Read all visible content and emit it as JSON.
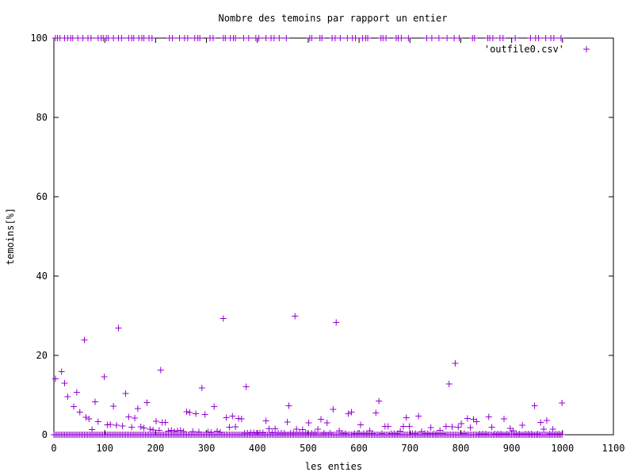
{
  "chart_data": {
    "type": "scatter",
    "title": "Nombre des temoins par rapport un entier",
    "xlabel": "les enties",
    "ylabel": "temoins[%]",
    "xlim": [
      0,
      1100
    ],
    "ylim": [
      0,
      100
    ],
    "xticks": [
      0,
      100,
      200,
      300,
      400,
      500,
      600,
      700,
      800,
      900,
      1000,
      1100
    ],
    "yticks": [
      0,
      20,
      40,
      60,
      80,
      100
    ],
    "grid": false,
    "legend": "top-right",
    "series": [
      {
        "name": "'outfile0.csv'",
        "color": "#9400d3",
        "marker": "plus",
        "points": [
          [
            3,
            100
          ],
          [
            7,
            100
          ],
          [
            12,
            100
          ],
          [
            21,
            100
          ],
          [
            27,
            100
          ],
          [
            33,
            100
          ],
          [
            37,
            100
          ],
          [
            47,
            100
          ],
          [
            57,
            100
          ],
          [
            67,
            100
          ],
          [
            73,
            100
          ],
          [
            87,
            100
          ],
          [
            93,
            100
          ],
          [
            97,
            100
          ],
          [
            103,
            100
          ],
          [
            107,
            100
          ],
          [
            117,
            100
          ],
          [
            127,
            100
          ],
          [
            133,
            100
          ],
          [
            147,
            100
          ],
          [
            153,
            100
          ],
          [
            157,
            100
          ],
          [
            167,
            100
          ],
          [
            173,
            100
          ],
          [
            177,
            100
          ],
          [
            187,
            100
          ],
          [
            193,
            100
          ],
          [
            227,
            100
          ],
          [
            233,
            100
          ],
          [
            247,
            100
          ],
          [
            257,
            100
          ],
          [
            263,
            100
          ],
          [
            277,
            100
          ],
          [
            283,
            100
          ],
          [
            287,
            100
          ],
          [
            307,
            100
          ],
          [
            313,
            100
          ],
          [
            333,
            100
          ],
          [
            337,
            100
          ],
          [
            347,
            100
          ],
          [
            353,
            100
          ],
          [
            357,
            100
          ],
          [
            373,
            100
          ],
          [
            383,
            100
          ],
          [
            397,
            100
          ],
          [
            403,
            100
          ],
          [
            417,
            100
          ],
          [
            427,
            100
          ],
          [
            433,
            100
          ],
          [
            443,
            100
          ],
          [
            457,
            100
          ],
          [
            503,
            100
          ],
          [
            507,
            100
          ],
          [
            523,
            100
          ],
          [
            527,
            100
          ],
          [
            547,
            100
          ],
          [
            553,
            100
          ],
          [
            563,
            100
          ],
          [
            577,
            100
          ],
          [
            587,
            100
          ],
          [
            593,
            100
          ],
          [
            607,
            100
          ],
          [
            613,
            100
          ],
          [
            617,
            100
          ],
          [
            643,
            100
          ],
          [
            647,
            100
          ],
          [
            653,
            100
          ],
          [
            673,
            100
          ],
          [
            677,
            100
          ],
          [
            683,
            100
          ],
          [
            697,
            100
          ],
          [
            733,
            100
          ],
          [
            743,
            100
          ],
          [
            757,
            100
          ],
          [
            773,
            100
          ],
          [
            787,
            100
          ],
          [
            797,
            100
          ],
          [
            823,
            100
          ],
          [
            827,
            100
          ],
          [
            853,
            100
          ],
          [
            857,
            100
          ],
          [
            863,
            100
          ],
          [
            877,
            100
          ],
          [
            883,
            100
          ],
          [
            907,
            100
          ],
          [
            937,
            100
          ],
          [
            947,
            100
          ],
          [
            953,
            100
          ],
          [
            967,
            100
          ],
          [
            977,
            100
          ],
          [
            983,
            100
          ],
          [
            997,
            100
          ],
          [
            3,
            14.1
          ],
          [
            15,
            15.9
          ],
          [
            21,
            13
          ],
          [
            27,
            9.6
          ],
          [
            39,
            7.1
          ],
          [
            45,
            10.7
          ],
          [
            51,
            5.7
          ],
          [
            60,
            23.9
          ],
          [
            63,
            4.4
          ],
          [
            69,
            4
          ],
          [
            75,
            1.3
          ],
          [
            81,
            8.3
          ],
          [
            87,
            3.3
          ],
          [
            99,
            14.6
          ],
          [
            105,
            2.5
          ],
          [
            111,
            2.6
          ],
          [
            117,
            7.2
          ],
          [
            123,
            2.4
          ],
          [
            127,
            26.9
          ],
          [
            135,
            2.2
          ],
          [
            141,
            10.4
          ],
          [
            147,
            4.5
          ],
          [
            153,
            1.9
          ],
          [
            159,
            4.2
          ],
          [
            165,
            6.6
          ],
          [
            171,
            2
          ],
          [
            177,
            1.7
          ],
          [
            183,
            8.1
          ],
          [
            189,
            1.4
          ],
          [
            195,
            1.2
          ],
          [
            201,
            3.4
          ],
          [
            207,
            1.1
          ],
          [
            210,
            16.3
          ],
          [
            213,
            3.1
          ],
          [
            219,
            3.1
          ],
          [
            225,
            0.9
          ],
          [
            231,
            1.1
          ],
          [
            237,
            0.8
          ],
          [
            243,
            1
          ],
          [
            249,
            1.1
          ],
          [
            255,
            0.8
          ],
          [
            261,
            5.8
          ],
          [
            267,
            5.6
          ],
          [
            273,
            0.8
          ],
          [
            279,
            5.3
          ],
          [
            285,
            0.7
          ],
          [
            291,
            11.8
          ],
          [
            297,
            5.1
          ],
          [
            303,
            0.7
          ],
          [
            309,
            0.6
          ],
          [
            315,
            7.1
          ],
          [
            321,
            0.9
          ],
          [
            327,
            0.6
          ],
          [
            333,
            29.3
          ],
          [
            339,
            4.3
          ],
          [
            345,
            1.9
          ],
          [
            351,
            4.7
          ],
          [
            357,
            2
          ],
          [
            363,
            4.1
          ],
          [
            369,
            4
          ],
          [
            375,
            0.4
          ],
          [
            378,
            12.1
          ],
          [
            381,
            0.4
          ],
          [
            387,
            0.5
          ],
          [
            393,
            0.5
          ],
          [
            399,
            0.4
          ],
          [
            405,
            0.5
          ],
          [
            411,
            0.5
          ],
          [
            417,
            3.5
          ],
          [
            423,
            1.5
          ],
          [
            429,
            0.5
          ],
          [
            435,
            1.5
          ],
          [
            441,
            0.4
          ],
          [
            447,
            0.4
          ],
          [
            453,
            0.4
          ],
          [
            459,
            3.2
          ],
          [
            462,
            7.3
          ],
          [
            465,
            0.4
          ],
          [
            471,
            0.4
          ],
          [
            474,
            29.9
          ],
          [
            477,
            1.4
          ],
          [
            483,
            0.4
          ],
          [
            489,
            1.3
          ],
          [
            495,
            0.4
          ],
          [
            501,
            3
          ],
          [
            507,
            0.4
          ],
          [
            513,
            0.4
          ],
          [
            519,
            1.4
          ],
          [
            525,
            3.9
          ],
          [
            531,
            0.4
          ],
          [
            537,
            3
          ],
          [
            543,
            0.4
          ],
          [
            549,
            6.4
          ],
          [
            555,
            28.3
          ],
          [
            561,
            1
          ],
          [
            567,
            0.4
          ],
          [
            573,
            0.3
          ],
          [
            579,
            5.3
          ],
          [
            585,
            5.7
          ],
          [
            591,
            0.3
          ],
          [
            597,
            0.3
          ],
          [
            603,
            2.5
          ],
          [
            609,
            0.3
          ],
          [
            615,
            0.3
          ],
          [
            621,
            1
          ],
          [
            627,
            0.3
          ],
          [
            633,
            5.5
          ],
          [
            639,
            8.5
          ],
          [
            645,
            0.3
          ],
          [
            651,
            2.1
          ],
          [
            657,
            2.1
          ],
          [
            663,
            0.3
          ],
          [
            669,
            0.3
          ],
          [
            675,
            0.3
          ],
          [
            681,
            0.9
          ],
          [
            687,
            2.1
          ],
          [
            693,
            4.3
          ],
          [
            699,
            2.1
          ],
          [
            705,
            0.3
          ],
          [
            711,
            0.3
          ],
          [
            717,
            4.7
          ],
          [
            723,
            0.8
          ],
          [
            729,
            0.3
          ],
          [
            735,
            0.3
          ],
          [
            741,
            1.8
          ],
          [
            747,
            0.3
          ],
          [
            753,
            0.3
          ],
          [
            759,
            1.1
          ],
          [
            765,
            0.3
          ],
          [
            771,
            2.1
          ],
          [
            777,
            12.8
          ],
          [
            783,
            2
          ],
          [
            789,
            18
          ],
          [
            795,
            1.9
          ],
          [
            801,
            2.8
          ],
          [
            807,
            0.3
          ],
          [
            813,
            4.1
          ],
          [
            819,
            1.8
          ],
          [
            825,
            3.9
          ],
          [
            831,
            3.3
          ],
          [
            837,
            0.2
          ],
          [
            843,
            0.2
          ],
          [
            849,
            0.2
          ],
          [
            855,
            4.5
          ],
          [
            861,
            1.9
          ],
          [
            867,
            0.2
          ],
          [
            873,
            0.2
          ],
          [
            879,
            0.2
          ],
          [
            885,
            4
          ],
          [
            891,
            0.2
          ],
          [
            897,
            1.6
          ],
          [
            903,
            1
          ],
          [
            909,
            0.2
          ],
          [
            915,
            0.2
          ],
          [
            921,
            2.4
          ],
          [
            927,
            0.2
          ],
          [
            933,
            0.2
          ],
          [
            939,
            0.2
          ],
          [
            945,
            7.3
          ],
          [
            951,
            0.2
          ],
          [
            957,
            3.1
          ],
          [
            963,
            1.4
          ],
          [
            969,
            3.6
          ],
          [
            975,
            0.2
          ],
          [
            981,
            1.4
          ],
          [
            987,
            0.2
          ],
          [
            993,
            0.2
          ],
          [
            999,
            8
          ]
        ]
      }
    ]
  }
}
